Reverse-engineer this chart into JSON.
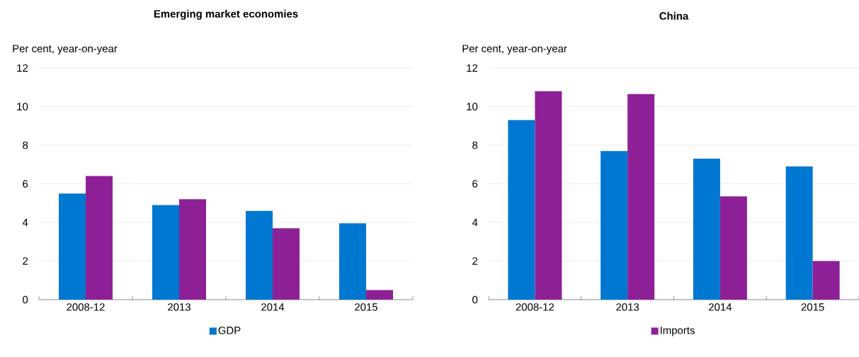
{
  "chart_data": [
    {
      "type": "bar",
      "title": "Emerging market economies",
      "ylabel": "Per cent, year-on-year",
      "categories": [
        "2008-12",
        "2013",
        "2014",
        "2015"
      ],
      "series": [
        {
          "name": "GDP",
          "color": "#0077d0",
          "values": [
            5.5,
            4.9,
            4.6,
            3.95
          ]
        },
        {
          "color": "#8e2097",
          "values": [
            6.4,
            5.2,
            3.7,
            0.5
          ]
        }
      ],
      "ylim": [
        0,
        12
      ],
      "yticks": [
        0,
        2,
        4,
        6,
        8,
        10,
        12
      ],
      "grid": "y",
      "legend": "bottom"
    },
    {
      "type": "bar",
      "title": "China",
      "ylabel": "Per cent, year-on-year",
      "categories": [
        "2008-12",
        "2013",
        "2014",
        "2015"
      ],
      "series": [
        {
          "color": "#0077d0",
          "values": [
            9.3,
            7.7,
            7.3,
            6.9
          ]
        },
        {
          "name": "Imports",
          "color": "#8e2097",
          "values": [
            10.8,
            10.65,
            5.35,
            2.0
          ]
        }
      ],
      "ylim": [
        0,
        12
      ],
      "yticks": [
        0,
        2,
        4,
        6,
        8,
        10,
        12
      ],
      "grid": "y",
      "legend": "bottom"
    }
  ]
}
